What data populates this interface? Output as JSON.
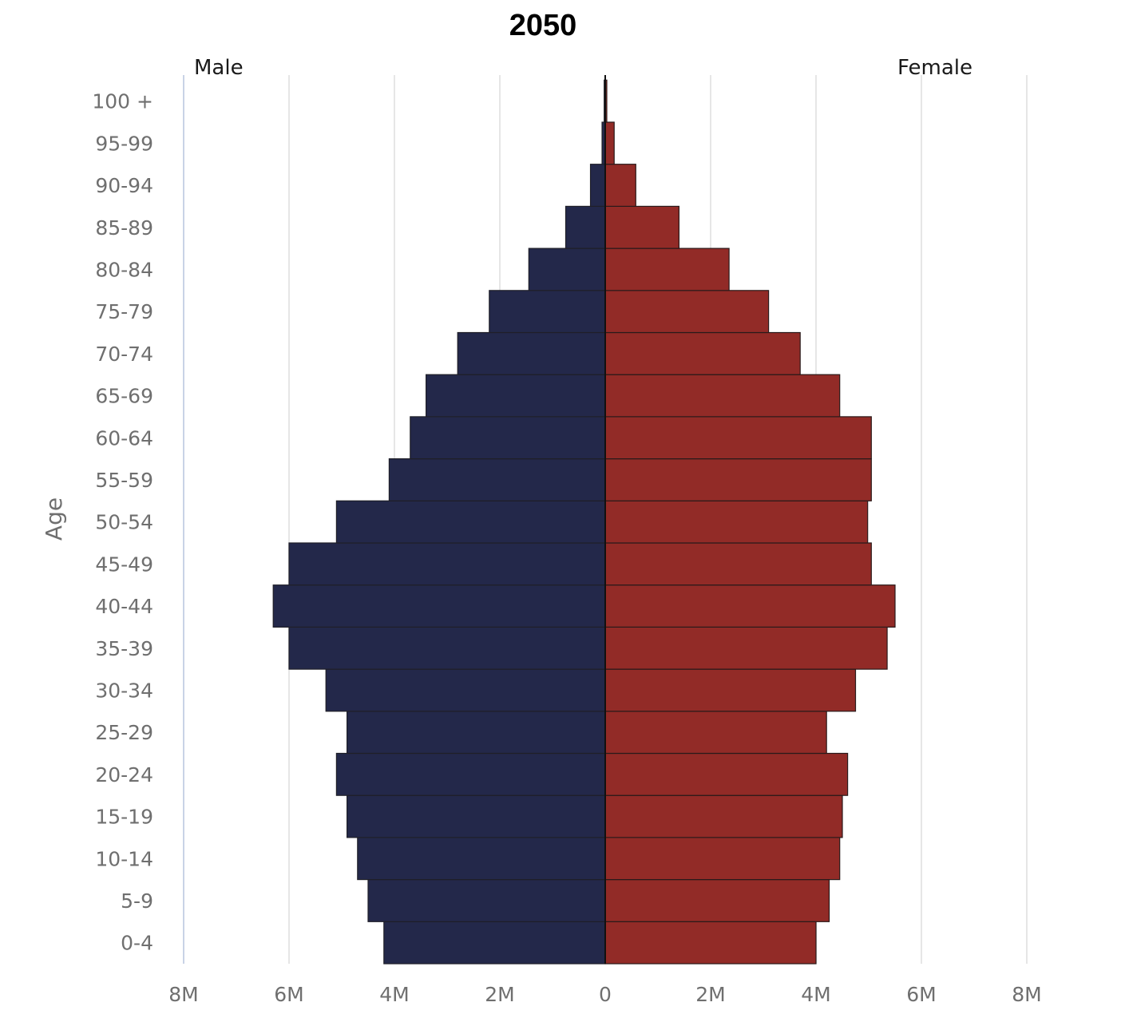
{
  "chart_data": {
    "type": "bar",
    "orientation": "horizontal-population-pyramid",
    "title": "2050",
    "ylabel": "Age",
    "xlim": [
      -8,
      8
    ],
    "x_unit": "M",
    "x_ticks": [
      "8M",
      "6M",
      "4M",
      "2M",
      "0",
      "2M",
      "4M",
      "6M",
      "8M"
    ],
    "grid": true,
    "categories": [
      "0-4",
      "5-9",
      "10-14",
      "15-19",
      "20-24",
      "25-29",
      "30-34",
      "35-39",
      "40-44",
      "45-49",
      "50-54",
      "55-59",
      "60-64",
      "65-69",
      "70-74",
      "75-79",
      "80-84",
      "85-89",
      "90-94",
      "95-99",
      "100 +"
    ],
    "series": [
      {
        "name": "Male",
        "color": "#23284a",
        "values": [
          4.2,
          4.5,
          4.7,
          4.9,
          5.1,
          4.9,
          5.3,
          6.0,
          6.3,
          6.0,
          5.1,
          4.1,
          3.7,
          3.4,
          2.8,
          2.2,
          1.45,
          0.75,
          0.28,
          0.06,
          0.02
        ]
      },
      {
        "name": "Female",
        "color": "#922b27",
        "values": [
          4.0,
          4.25,
          4.45,
          4.5,
          4.6,
          4.2,
          4.75,
          5.35,
          5.5,
          5.05,
          4.98,
          5.05,
          5.05,
          4.45,
          3.7,
          3.1,
          2.35,
          1.4,
          0.58,
          0.17,
          0.03
        ]
      }
    ]
  }
}
